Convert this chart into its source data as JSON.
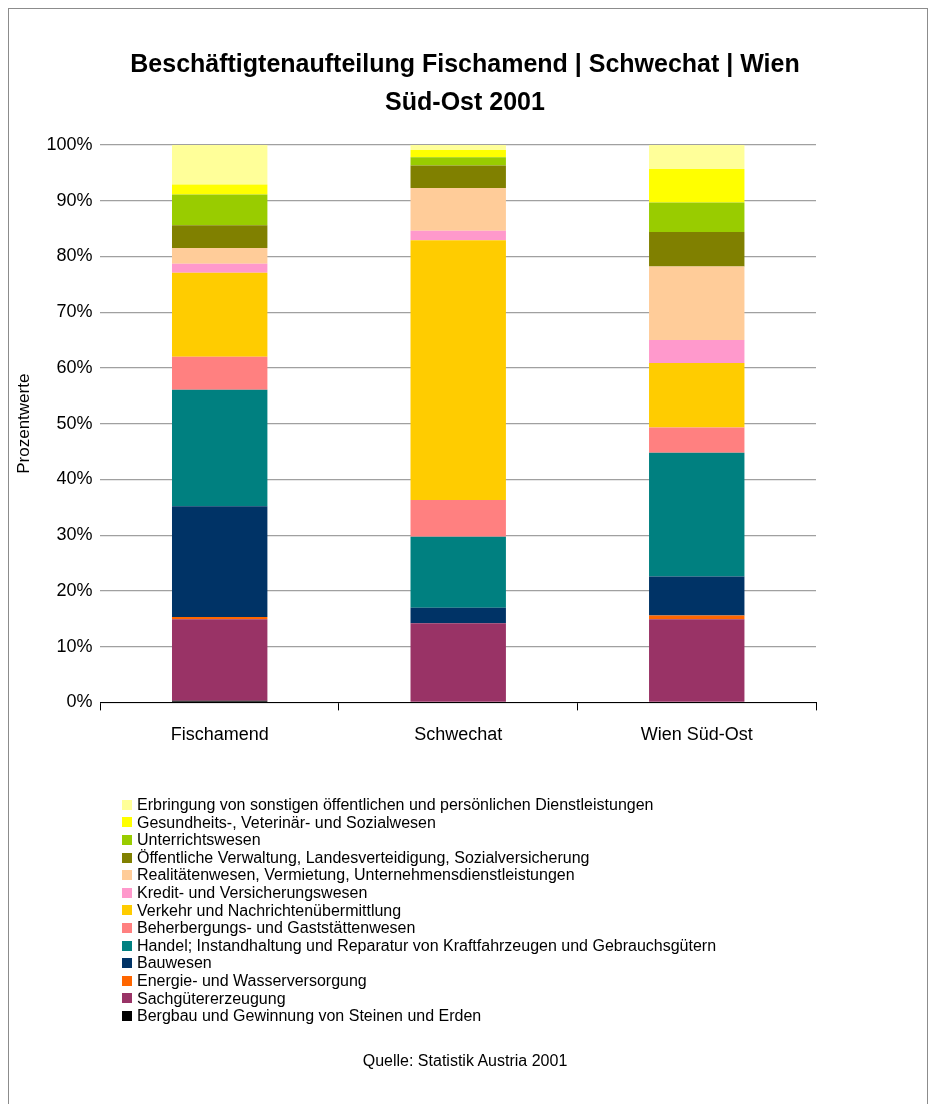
{
  "chart_data": {
    "type": "bar",
    "stacked": true,
    "title": "Beschäftigtenaufteilung Fischamend | Schwechat | Wien Süd-Ost 2001",
    "ylabel": "Prozentwerte",
    "categories": [
      "Fischamend",
      "Schwechat",
      "Wien Süd-Ost"
    ],
    "ylim": [
      0,
      100
    ],
    "yticks": [
      {
        "value": 0,
        "label": "0%"
      },
      {
        "value": 10,
        "label": "10%"
      },
      {
        "value": 20,
        "label": "20%"
      },
      {
        "value": 30,
        "label": "30%"
      },
      {
        "value": 40,
        "label": "40%"
      },
      {
        "value": 50,
        "label": "50%"
      },
      {
        "value": 60,
        "label": "60%"
      },
      {
        "value": 70,
        "label": "70%"
      },
      {
        "value": 80,
        "label": "80%"
      },
      {
        "value": 90,
        "label": "90%"
      },
      {
        "value": 100,
        "label": "100%"
      }
    ],
    "grid": "y",
    "legend": "bottom",
    "series": [
      {
        "name": "Bergbau und Gewinnung von Steinen und Erden",
        "color": "#000000",
        "values": [
          0.3,
          0,
          0
        ]
      },
      {
        "name": "Sachgütererzeugung",
        "color": "#993366",
        "values": [
          14.6,
          14.2,
          14.9
        ]
      },
      {
        "name": "Energie- und Wasserversorgung",
        "color": "#ff6600",
        "values": [
          0.4,
          0,
          0.7
        ]
      },
      {
        "name": "Bauwesen",
        "color": "#003366",
        "values": [
          19.9,
          2.8,
          7.0
        ]
      },
      {
        "name": "Handel; Instandhaltung und Reparatur von Kraftfahrzeugen und Gebrauchsgütern",
        "color": "#008080",
        "values": [
          20.9,
          12.7,
          22.2
        ]
      },
      {
        "name": "Beherbergungs- und Gaststättenwesen",
        "color": "#ff8080",
        "values": [
          5.9,
          6.6,
          4.5
        ]
      },
      {
        "name": "Verkehr und Nachrichtenübermittlung",
        "color": "#ffcc00",
        "values": [
          15.1,
          46.6,
          11.6
        ]
      },
      {
        "name": "Kredit- und Versicherungswesen",
        "color": "#ff99cc",
        "values": [
          1.6,
          1.7,
          4.1
        ]
      },
      {
        "name": "Realitätenwesen, Vermietung, Unternehmensdienstleistungen",
        "color": "#ffcc99",
        "values": [
          2.8,
          7.7,
          13.2
        ]
      },
      {
        "name": "Öffentliche Verwaltung, Landesverteidigung, Sozialversicherung",
        "color": "#808000",
        "values": [
          4.1,
          4.0,
          6.2
        ]
      },
      {
        "name": "Unterrichtswesen",
        "color": "#99cc00",
        "values": [
          5.5,
          1.5,
          5.3
        ]
      },
      {
        "name": "Gesundheits-, Veterinär- und Sozialwesen",
        "color": "#ffff00",
        "values": [
          1.8,
          1.3,
          6.0
        ]
      },
      {
        "name": "Erbringung von sonstigen öffentlichen und persönlichen Dienstleistungen",
        "color": "#ffff99",
        "values": [
          7.1,
          0.9,
          4.3
        ]
      }
    ],
    "annotations": [
      "Quelle: Statistik Austria 2001"
    ]
  }
}
